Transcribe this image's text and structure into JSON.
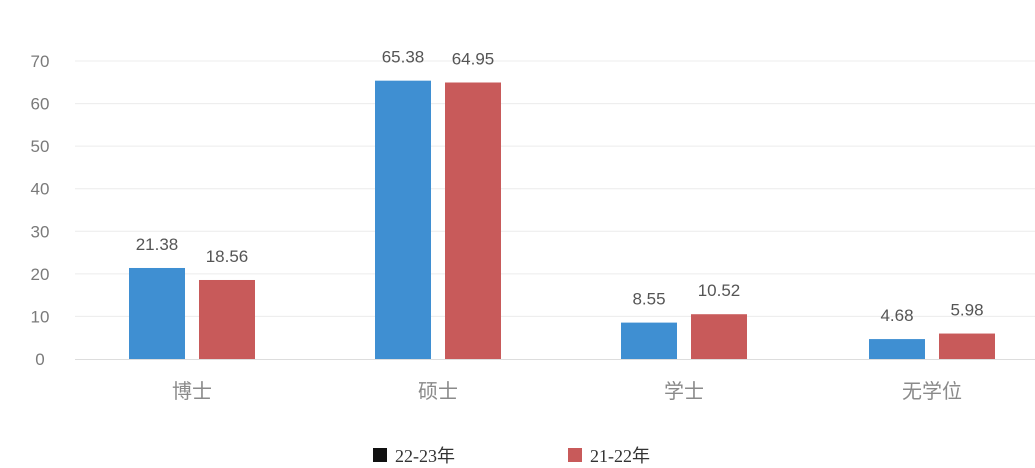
{
  "chart_data": {
    "type": "bar",
    "categories": [
      "博士",
      "硕士",
      "学士",
      "无学位"
    ],
    "series": [
      {
        "name": "22-23年",
        "values": [
          21.38,
          65.38,
          8.55,
          4.68
        ],
        "color": "#3f8fd2"
      },
      {
        "name": "21-22年",
        "values": [
          18.56,
          64.95,
          10.52,
          5.98
        ],
        "color": "#c85a5a"
      }
    ],
    "yticks": [
      0,
      10,
      20,
      30,
      40,
      50,
      60,
      70
    ],
    "ylim": [
      0,
      70
    ],
    "grid": true,
    "legend_position": "bottom",
    "title": "",
    "xlabel": "",
    "ylabel": ""
  }
}
